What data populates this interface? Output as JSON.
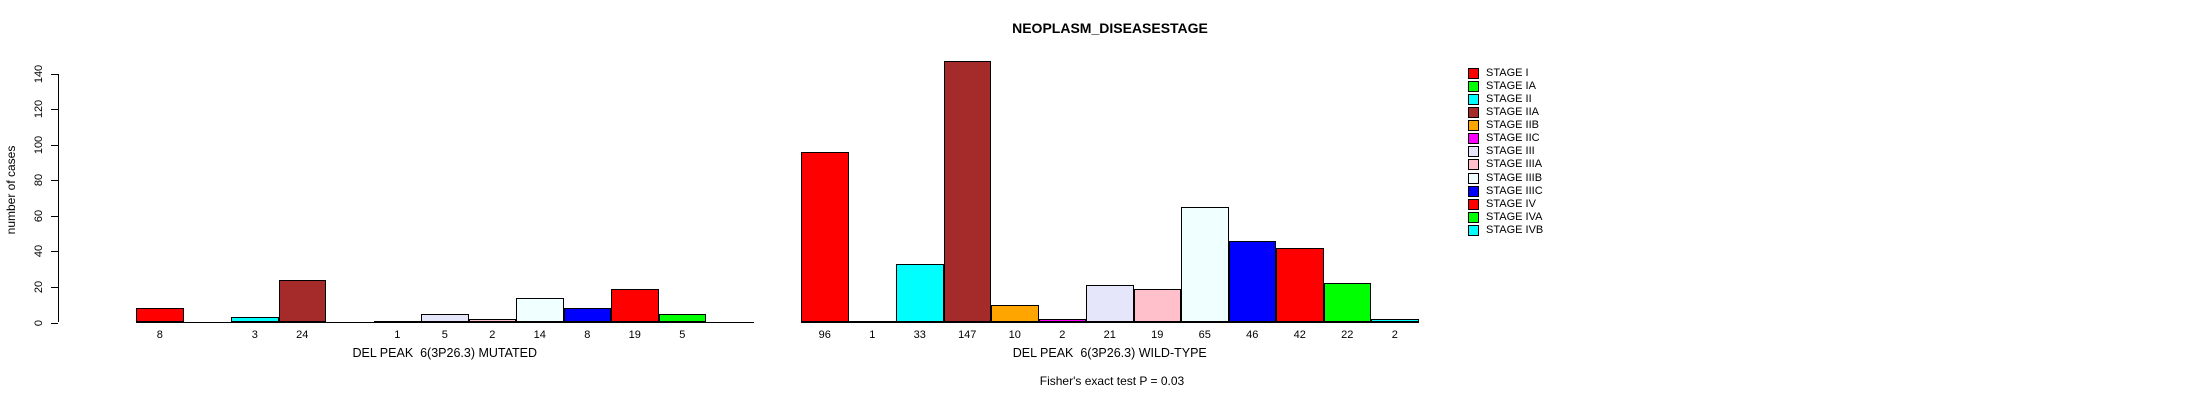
{
  "title": "NEOPLASM_DISEASESTAGE",
  "y_axis": {
    "label": "number of cases",
    "ticks": [
      0,
      20,
      40,
      60,
      80,
      100,
      120,
      140
    ]
  },
  "footer": "Fisher's exact test P = 0.03",
  "legend": {
    "position": "right",
    "items": [
      {
        "label": "STAGE I",
        "color": "#FF0000"
      },
      {
        "label": "STAGE IA",
        "color": "#00FF00"
      },
      {
        "label": "STAGE II",
        "color": "#00FFFF"
      },
      {
        "label": "STAGE IIA",
        "color": "#A52A2A"
      },
      {
        "label": "STAGE IIB",
        "color": "#FFA500"
      },
      {
        "label": "STAGE IIC",
        "color": "#FF00FF"
      },
      {
        "label": "STAGE III",
        "color": "#E6E6FA"
      },
      {
        "label": "STAGE IIIA",
        "color": "#FFC0CB"
      },
      {
        "label": "STAGE IIIB",
        "color": "#F0FFFF"
      },
      {
        "label": "STAGE IIIC",
        "color": "#0000FF"
      },
      {
        "label": "STAGE IV",
        "color": "#FF0000"
      },
      {
        "label": "STAGE IVA",
        "color": "#00FF00"
      },
      {
        "label": "STAGE IVB",
        "color": "#00FFFF"
      }
    ]
  },
  "chart_data": {
    "type": "bar",
    "title": "NEOPLASM_DISEASESTAGE",
    "xlabel": "",
    "ylabel": "number of cases",
    "ylim": [
      0,
      140
    ],
    "yticks": [
      0,
      20,
      40,
      60,
      80,
      100,
      120,
      140
    ],
    "grid": false,
    "legend_position": "right",
    "categories": [
      "STAGE I",
      "STAGE IA",
      "STAGE II",
      "STAGE IIA",
      "STAGE IIB",
      "STAGE IIC",
      "STAGE III",
      "STAGE IIIA",
      "STAGE IIIB",
      "STAGE IIIC",
      "STAGE IV",
      "STAGE IVA",
      "STAGE IVB"
    ],
    "colors": [
      "#FF0000",
      "#00FF00",
      "#00FFFF",
      "#A52A2A",
      "#FFA500",
      "#FF00FF",
      "#E6E6FA",
      "#FFC0CB",
      "#F0FFFF",
      "#0000FF",
      "#FF0000",
      "#00FF00",
      "#00FFFF"
    ],
    "bar_border_color": "#000000",
    "groups": [
      {
        "label": "DEL PEAK  6(3P26.3) MUTATED",
        "values": [
          8,
          0,
          3,
          24,
          0,
          1,
          5,
          2,
          14,
          8,
          19,
          5,
          0
        ]
      },
      {
        "label": "DEL PEAK  6(3P26.3) WILD-TYPE",
        "values": [
          96,
          1,
          33,
          147,
          10,
          2,
          21,
          19,
          65,
          46,
          42,
          22,
          2
        ]
      }
    ],
    "value_labels_shown_for_nonzero_bars": true,
    "annotation": "Fisher's exact test P = 0.03"
  }
}
